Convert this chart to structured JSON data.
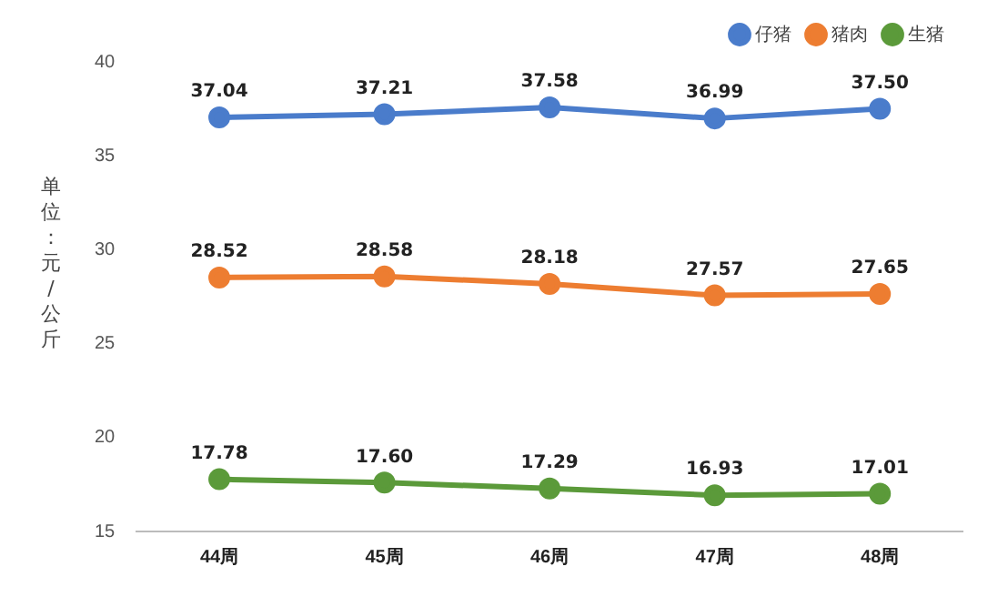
{
  "chart_data": {
    "type": "line",
    "ylabel": "单位：元/公斤",
    "categories": [
      "44周",
      "45周",
      "46周",
      "47周",
      "48周"
    ],
    "series": [
      {
        "name": "仔猪",
        "color": "#4a7ccb",
        "values": [
          37.04,
          37.21,
          37.58,
          36.99,
          37.5
        ],
        "value_labels": [
          "37.04",
          "37.21",
          "37.58",
          "36.99",
          "37.50"
        ]
      },
      {
        "name": "猪肉",
        "color": "#ed7d31",
        "values": [
          28.52,
          28.58,
          28.18,
          27.57,
          27.65
        ],
        "value_labels": [
          "28.52",
          "28.58",
          "28.18",
          "27.57",
          "27.65"
        ]
      },
      {
        "name": "生猪",
        "color": "#5b9a3a",
        "values": [
          17.78,
          17.6,
          17.29,
          16.93,
          17.01
        ],
        "value_labels": [
          "17.78",
          "17.60",
          "17.29",
          "16.93",
          "17.01"
        ]
      }
    ],
    "ylim": [
      15,
      40
    ],
    "yticks": [
      15,
      20,
      25,
      30,
      35,
      40
    ],
    "grid": false,
    "legend": "top right",
    "marker": "circle",
    "line_style": "solid"
  }
}
